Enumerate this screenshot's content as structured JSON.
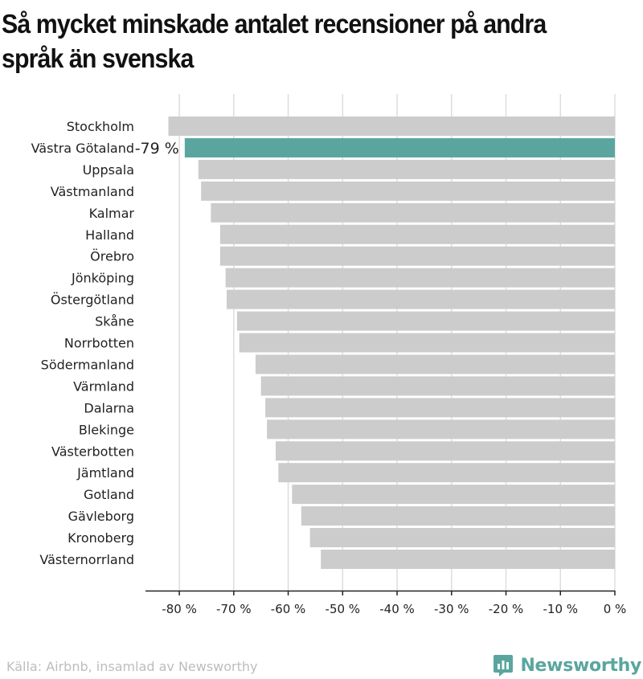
{
  "title": "Så mycket minskade antalet recensioner på andra språk än svenska",
  "source": "Källa: Airbnb, insamlad av Newsworthy",
  "brand": {
    "name": "Newsworthy",
    "icon": "newsworthy-logo-icon",
    "color": "#5aa69e"
  },
  "colors": {
    "bar": "#cccccc",
    "highlight": "#5aa69e",
    "grid": "#dddddd"
  },
  "chart_data": {
    "type": "bar",
    "orientation": "horizontal",
    "categories": [
      "Stockholm",
      "Västra Götaland",
      "Uppsala",
      "Västmanland",
      "Kalmar",
      "Halland",
      "Örebro",
      "Jönköping",
      "Östergötland",
      "Skåne",
      "Norrbotten",
      "Södermanland",
      "Värmland",
      "Dalarna",
      "Blekinge",
      "Västerbotten",
      "Jämtland",
      "Gotland",
      "Gävleborg",
      "Kronoberg",
      "Västernorrland"
    ],
    "values": [
      -82,
      -79,
      -76.5,
      -76,
      -74.2,
      -72.5,
      -72.5,
      -71.5,
      -71.3,
      -69.4,
      -69,
      -66,
      -65,
      -64.2,
      -63.9,
      -62.3,
      -61.8,
      -59.3,
      -57.6,
      -56,
      -54
    ],
    "highlight": "Västra Götaland",
    "highlight_label": "-79 %",
    "xlim": [
      -86,
      0
    ],
    "xticks": [
      -80,
      -70,
      -60,
      -50,
      -40,
      -30,
      -20,
      -10,
      0
    ],
    "xtick_labels": [
      "-80 %",
      "-70 %",
      "-60 %",
      "-50 %",
      "-40 %",
      "-30 %",
      "-20 %",
      "-10 %",
      "0 %"
    ],
    "grid": true
  }
}
